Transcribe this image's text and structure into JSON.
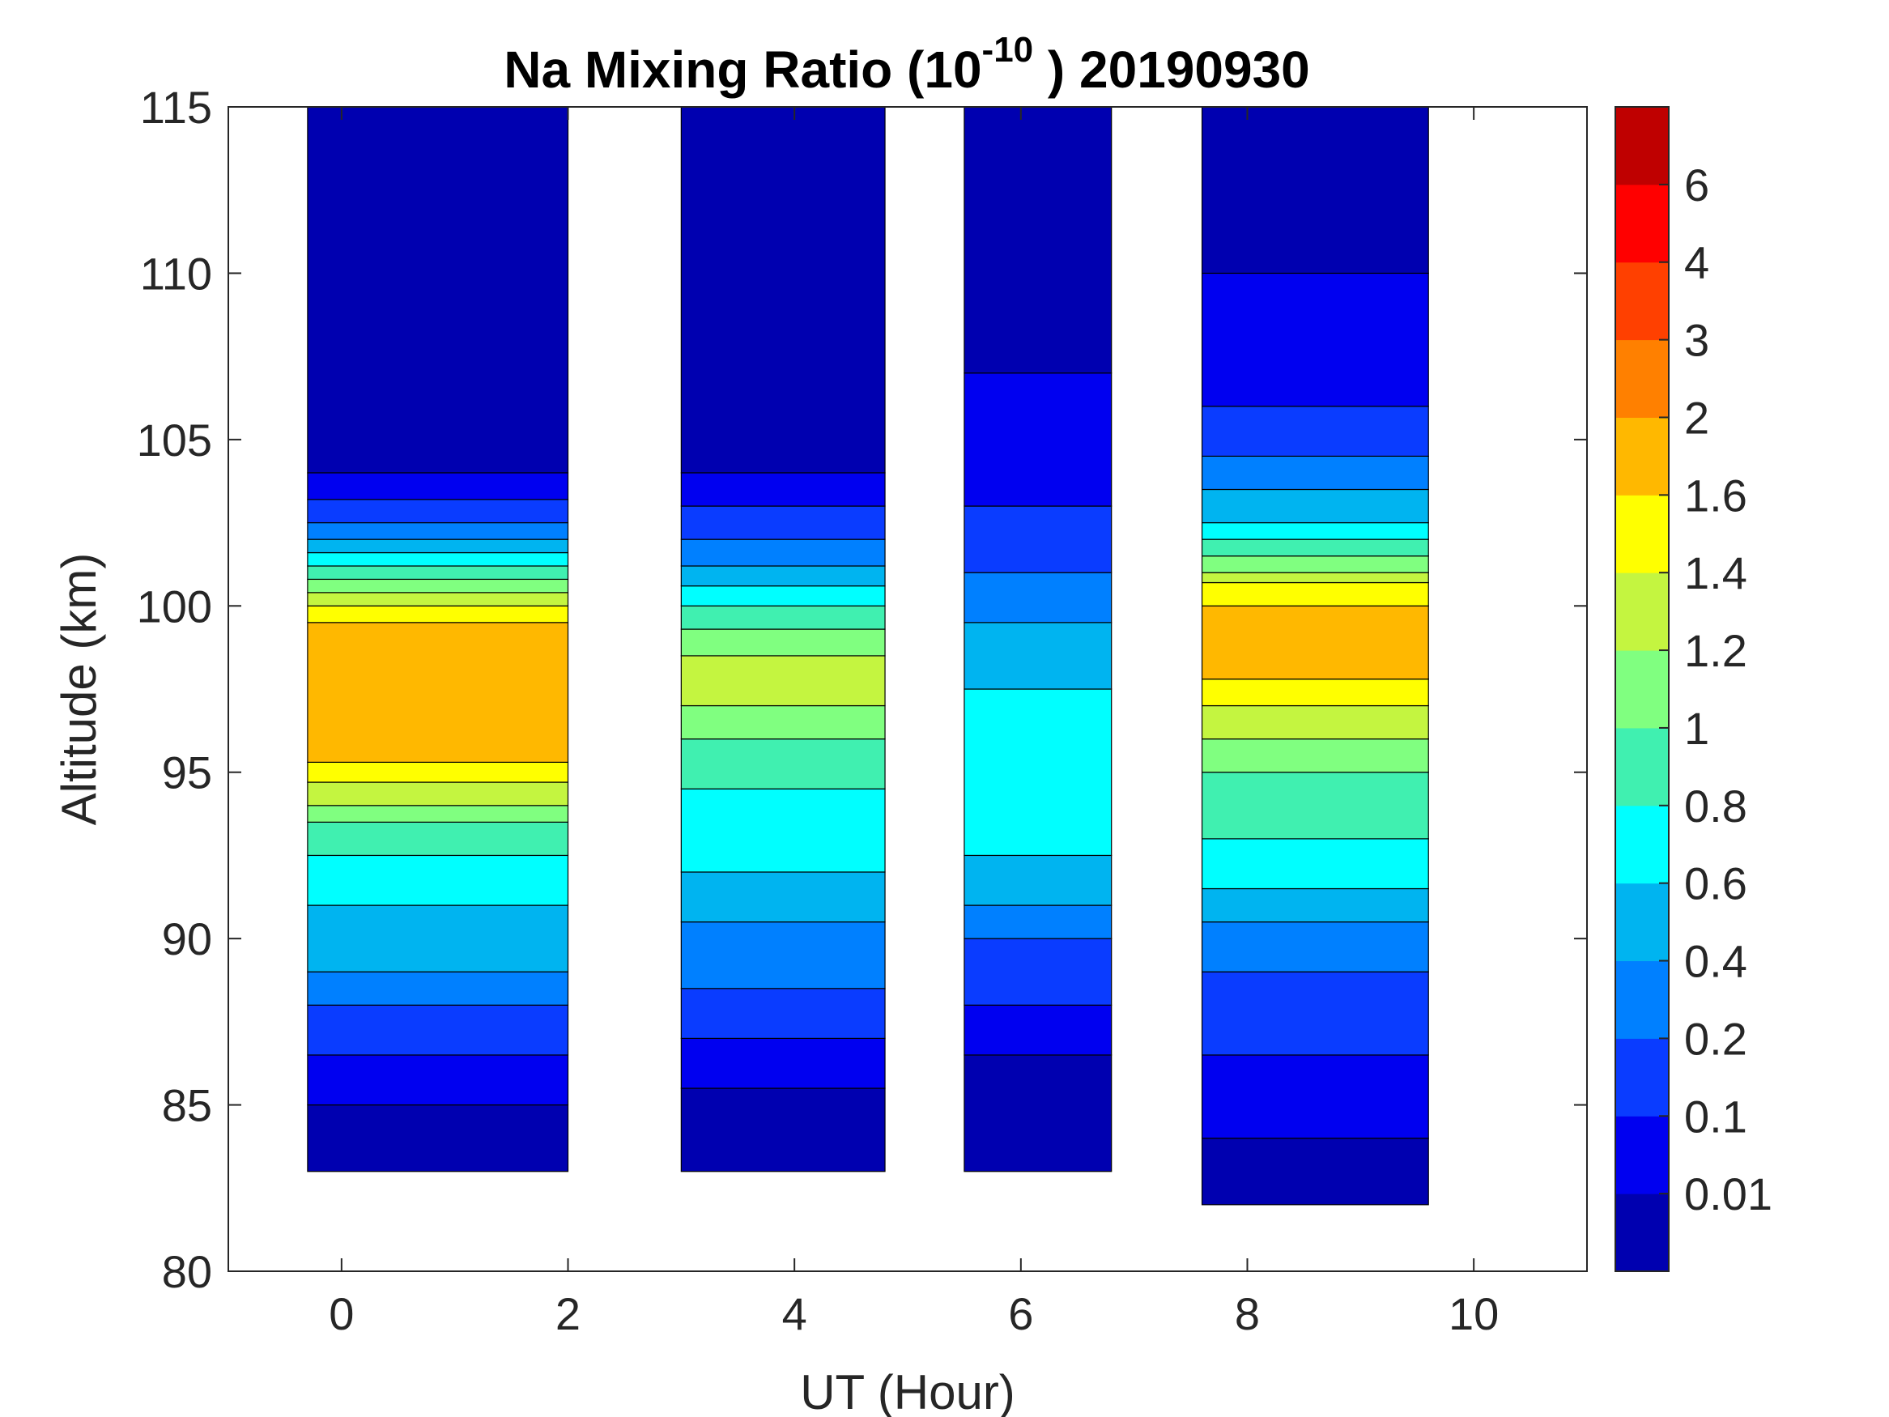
{
  "chart_data": {
    "type": "heatmap",
    "subtype": "filled-contour",
    "title": "Na Mixing Ratio (10^-10 ) 20190930",
    "title_parts": {
      "main": "Na Mixing Ratio (10",
      "exponent": "-10",
      "tail": " ) 20190930"
    },
    "xlabel": "UT (Hour)",
    "ylabel": "Altitude (km)",
    "xlim": [
      -1,
      11
    ],
    "ylim": [
      80,
      115
    ],
    "xticks": [
      0,
      2,
      4,
      6,
      8,
      10
    ],
    "yticks": [
      80,
      85,
      90,
      95,
      100,
      105,
      110,
      115
    ],
    "grid": false,
    "colorbar": {
      "placement": "right",
      "levels": [
        0,
        0.01,
        0.1,
        0.2,
        0.4,
        0.6,
        0.8,
        1,
        1.2,
        1.4,
        1.6,
        2,
        3,
        4,
        6,
        7
      ],
      "tick_labels": [
        "0.01",
        "0.1",
        "0.2",
        "0.4",
        "0.6",
        "0.8",
        "1",
        "1.2",
        "1.4",
        "1.6",
        "2",
        "3",
        "4",
        "6"
      ],
      "colors": [
        "#0000B0",
        "#0000F0",
        "#0A3CFF",
        "#0080FF",
        "#00B4F0",
        "#00FFFF",
        "#40F0B0",
        "#80FF80",
        "#C4F540",
        "#FFFF00",
        "#FFB800",
        "#FF8000",
        "#FF4000",
        "#FF0000",
        "#BF0000"
      ]
    },
    "blocks": [
      {
        "t": [
          -0.3,
          2.0
        ],
        "bands": [
          [
            83,
            85,
            0.005
          ],
          [
            85,
            86.5,
            0.05
          ],
          [
            86.5,
            88,
            0.15
          ],
          [
            88,
            89,
            0.3
          ],
          [
            89,
            91,
            0.5
          ],
          [
            91,
            92.5,
            0.7
          ],
          [
            92.5,
            93.5,
            0.9
          ],
          [
            93.5,
            94,
            1.1
          ],
          [
            94,
            94.7,
            1.3
          ],
          [
            94.7,
            95.3,
            1.5
          ],
          [
            95.3,
            99.5,
            1.8
          ],
          [
            99.5,
            100,
            1.5
          ],
          [
            100,
            100.4,
            1.3
          ],
          [
            100.4,
            100.8,
            1.1
          ],
          [
            100.8,
            101.2,
            0.9
          ],
          [
            101.2,
            101.6,
            0.7
          ],
          [
            101.6,
            102,
            0.5
          ],
          [
            102,
            102.5,
            0.3
          ],
          [
            102.5,
            103.2,
            0.15
          ],
          [
            103.2,
            104,
            0.05
          ],
          [
            104,
            115,
            0.005
          ]
        ]
      },
      {
        "t": [
          3.0,
          4.8
        ],
        "bands": [
          [
            83,
            85.5,
            0.005
          ],
          [
            85.5,
            87,
            0.05
          ],
          [
            87,
            88.5,
            0.15
          ],
          [
            88.5,
            90.5,
            0.3
          ],
          [
            90.5,
            92,
            0.5
          ],
          [
            92,
            94.5,
            0.7
          ],
          [
            94.5,
            96,
            0.9
          ],
          [
            96,
            97,
            1.1
          ],
          [
            97,
            98.5,
            1.3
          ],
          [
            98.5,
            99.3,
            1.1
          ],
          [
            99.3,
            100,
            0.9
          ],
          [
            100,
            100.6,
            0.7
          ],
          [
            100.6,
            101.2,
            0.5
          ],
          [
            101.2,
            102,
            0.3
          ],
          [
            102,
            103,
            0.15
          ],
          [
            103,
            104,
            0.05
          ],
          [
            104,
            115,
            0.005
          ]
        ]
      },
      {
        "t": [
          5.5,
          6.8
        ],
        "bands": [
          [
            83,
            86.5,
            0.005
          ],
          [
            86.5,
            88,
            0.05
          ],
          [
            88,
            90,
            0.15
          ],
          [
            90,
            91,
            0.3
          ],
          [
            91,
            92.5,
            0.5
          ],
          [
            92.5,
            97.5,
            0.7
          ],
          [
            97.5,
            99.5,
            0.5
          ],
          [
            99.5,
            101,
            0.3
          ],
          [
            101,
            103,
            0.15
          ],
          [
            103,
            107,
            0.05
          ],
          [
            107,
            115,
            0.005
          ]
        ]
      },
      {
        "t": [
          7.6,
          9.6
        ],
        "bands": [
          [
            82,
            84,
            0.005
          ],
          [
            84,
            86.5,
            0.05
          ],
          [
            86.5,
            89,
            0.15
          ],
          [
            89,
            90.5,
            0.3
          ],
          [
            90.5,
            91.5,
            0.5
          ],
          [
            91.5,
            93,
            0.7
          ],
          [
            93,
            95,
            0.9
          ],
          [
            95,
            96,
            1.1
          ],
          [
            96,
            97,
            1.3
          ],
          [
            97,
            97.8,
            1.5
          ],
          [
            97.8,
            100,
            1.8
          ],
          [
            100,
            100.7,
            1.5
          ],
          [
            100.7,
            101,
            1.3
          ],
          [
            101,
            101.5,
            1.1
          ],
          [
            101.5,
            102,
            0.9
          ],
          [
            102,
            102.5,
            0.7
          ],
          [
            102.5,
            103.5,
            0.5
          ],
          [
            103.5,
            104.5,
            0.3
          ],
          [
            104.5,
            106,
            0.15
          ],
          [
            106,
            110,
            0.05
          ],
          [
            110,
            115,
            0.005
          ]
        ]
      }
    ]
  }
}
